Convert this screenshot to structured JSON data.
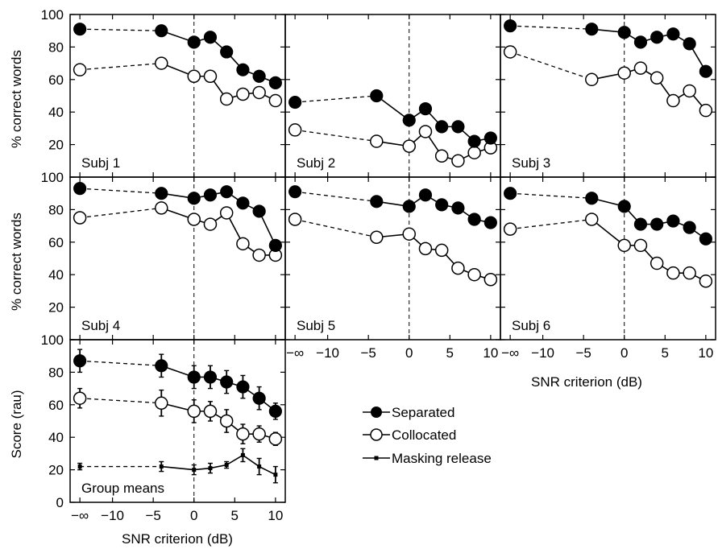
{
  "chart_data": {
    "type": "line",
    "x_tick_labels": [
      "−∞",
      "−10",
      "−5",
      "0",
      "5",
      "10"
    ],
    "x_ticks": [
      -10,
      -5,
      0,
      5,
      10
    ],
    "x_inf_position": -14,
    "xlim": [
      -15.2,
      11.2
    ],
    "ylim": [
      0,
      100
    ],
    "y_ticks": [
      0,
      20,
      40,
      60,
      80,
      100
    ],
    "y_tick_labels": [
      "0",
      "20",
      "40",
      "60",
      "80",
      "100"
    ],
    "x": [
      "−∞",
      -4,
      0,
      2,
      4,
      6,
      8,
      10
    ],
    "separator_x": 0,
    "xlabel": "SNR criterion (dB)",
    "ylabel_subjects": "% correct words",
    "ylabel_group": "Score (rau)",
    "legend": {
      "separated": "Separated",
      "collocated": "Collocated",
      "masking_release": "Masking release",
      "placement": "right of group panel"
    },
    "panels": [
      {
        "label": "Subj 1",
        "separated": [
          91,
          90,
          83,
          86,
          77,
          66,
          62,
          58
        ],
        "collocated": [
          66,
          70,
          62,
          62,
          48,
          51,
          52,
          47
        ]
      },
      {
        "label": "Subj 2",
        "separated": [
          46,
          50,
          35,
          42,
          31,
          31,
          22,
          24
        ],
        "collocated": [
          29,
          22,
          19,
          28,
          13,
          10,
          15,
          18
        ]
      },
      {
        "label": "Subj 3",
        "separated": [
          93,
          91,
          89,
          83,
          86,
          88,
          82,
          65
        ],
        "collocated": [
          77,
          60,
          64,
          67,
          61,
          47,
          53,
          41
        ]
      },
      {
        "label": "Subj 4",
        "separated": [
          93,
          90,
          87,
          89,
          91,
          84,
          79,
          58
        ],
        "collocated": [
          75,
          81,
          74,
          71,
          78,
          59,
          52,
          52
        ]
      },
      {
        "label": "Subj 5",
        "separated": [
          91,
          85,
          82,
          89,
          83,
          81,
          74,
          72
        ],
        "collocated": [
          74,
          63,
          65,
          56,
          55,
          44,
          40,
          37
        ]
      },
      {
        "label": "Subj 6",
        "separated": [
          90,
          87,
          82,
          71,
          71,
          73,
          69,
          62
        ],
        "collocated": [
          68,
          74,
          58,
          58,
          47,
          41,
          41,
          36
        ]
      },
      {
        "label": "Group means",
        "separated": [
          87,
          84,
          77,
          77,
          74,
          71,
          64,
          56
        ],
        "separated_err": [
          7,
          7,
          7,
          7,
          7,
          7,
          7,
          5
        ],
        "collocated": [
          64,
          61,
          56,
          56,
          50,
          42,
          42,
          39
        ],
        "collocated_err": [
          6,
          8,
          7,
          6,
          7,
          6,
          5,
          4
        ],
        "masking_release": [
          22,
          22,
          20,
          21,
          23,
          29,
          22,
          17
        ],
        "masking_release_err": [
          2,
          3,
          3,
          3,
          2,
          4,
          5,
          5
        ]
      }
    ]
  }
}
